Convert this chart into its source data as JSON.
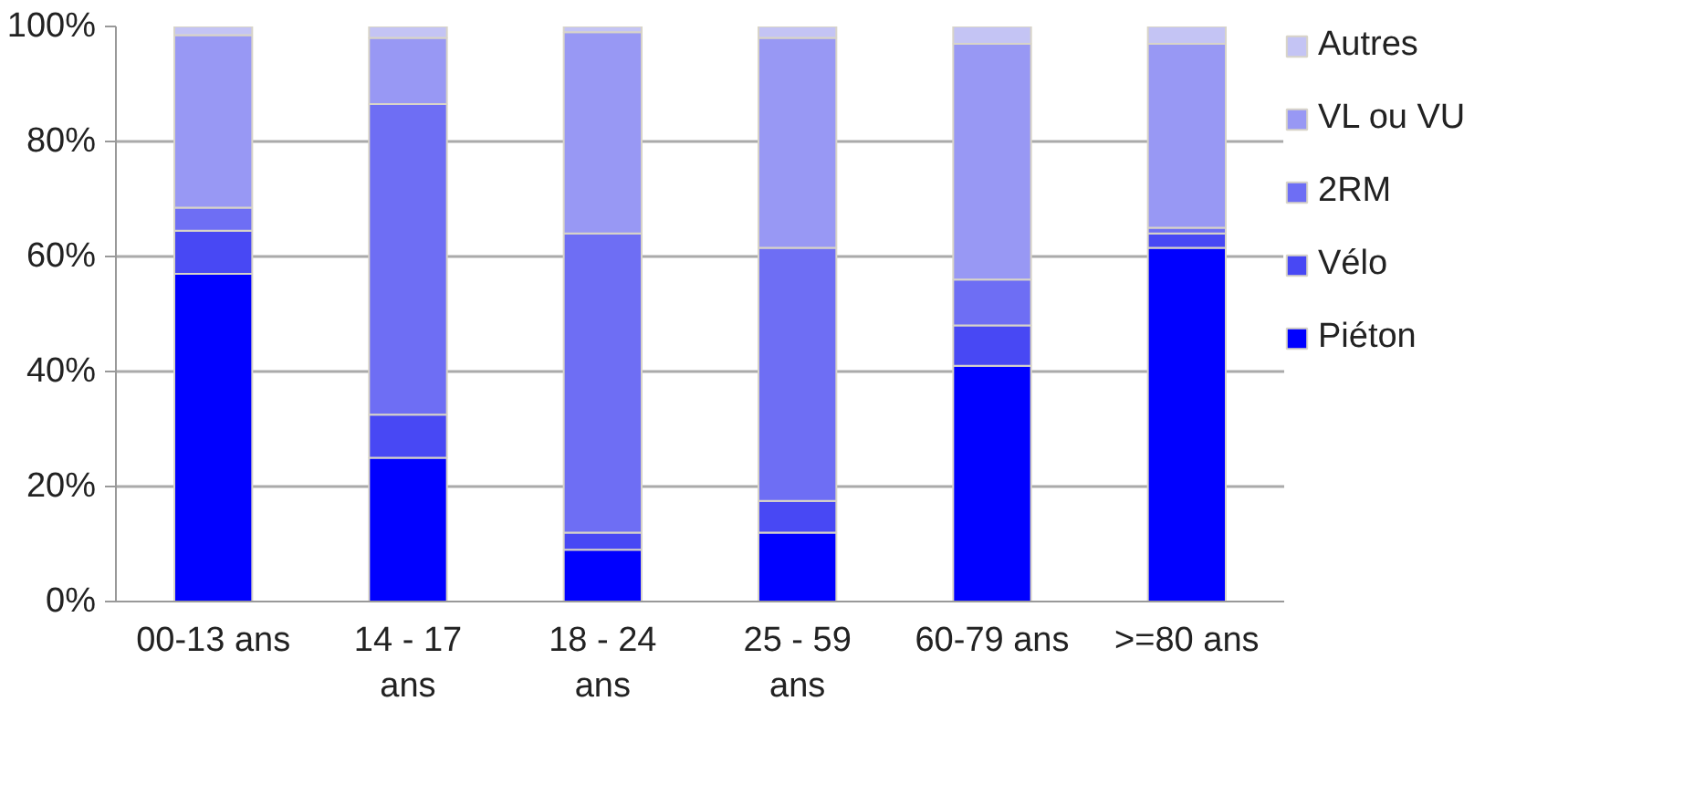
{
  "chart_data": {
    "type": "bar",
    "stacked": true,
    "categories": [
      "00-13 ans",
      "14 - 17 ans",
      "18 - 24 ans",
      "25 - 59 ans",
      "60-79 ans",
      ">=80 ans"
    ],
    "series": [
      {
        "name": "Piéton",
        "color": "#0000ff",
        "values": [
          57,
          25,
          9,
          12,
          41,
          61.5
        ]
      },
      {
        "name": "Vélo",
        "color": "#4848f4",
        "values": [
          7.5,
          7.5,
          3,
          5.5,
          7,
          2.5
        ]
      },
      {
        "name": "2RM",
        "color": "#6e6ef4",
        "values": [
          4,
          54,
          52,
          44,
          8,
          1
        ]
      },
      {
        "name": "VL ou VU",
        "color": "#9898f4",
        "values": [
          30,
          11.5,
          35,
          36.5,
          41,
          32
        ]
      },
      {
        "name": "Autres",
        "color": "#c4c4f4",
        "values": [
          1.5,
          2,
          1,
          2,
          3,
          3
        ]
      }
    ],
    "ylim": [
      0,
      100
    ],
    "yticks": [
      {
        "value": 0,
        "label": "0%"
      },
      {
        "value": 20,
        "label": "20%"
      },
      {
        "value": 40,
        "label": "40%"
      },
      {
        "value": 60,
        "label": "60%"
      },
      {
        "value": 80,
        "label": "80%"
      },
      {
        "value": 100,
        "label": "100%"
      }
    ],
    "grid": "y",
    "legend": "right"
  }
}
